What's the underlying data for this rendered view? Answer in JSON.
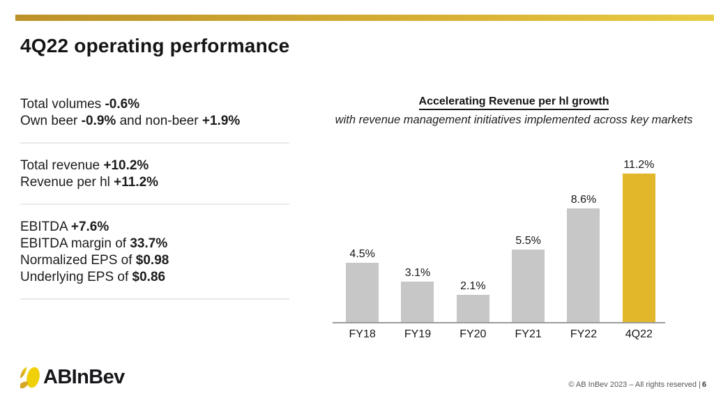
{
  "page": {
    "title": "4Q22 operating performance"
  },
  "colors": {
    "accent_gold": "#E2B82A",
    "bar_gray": "#C7C7C7",
    "top_bar_gradient_start": "#BD9129",
    "top_bar_gradient_end": "#E9CC45",
    "divider_gray": "#E9E9E9"
  },
  "metrics": {
    "groups": [
      {
        "lines": [
          {
            "segments": [
              {
                "text": "Total volumes ",
                "bold": false
              },
              {
                "text": "-0.6%",
                "bold": true
              }
            ]
          },
          {
            "segments": [
              {
                "text": "Own beer ",
                "bold": false
              },
              {
                "text": "-0.9%",
                "bold": true
              },
              {
                "text": " and non-beer ",
                "bold": false
              },
              {
                "text": "+1.9%",
                "bold": true
              }
            ]
          }
        ]
      },
      {
        "lines": [
          {
            "segments": [
              {
                "text": "Total revenue ",
                "bold": false
              },
              {
                "text": "+10.2%",
                "bold": true
              }
            ]
          },
          {
            "segments": [
              {
                "text": "Revenue per hl ",
                "bold": false
              },
              {
                "text": "+11.2%",
                "bold": true
              }
            ]
          }
        ]
      },
      {
        "lines": [
          {
            "segments": [
              {
                "text": "EBITDA ",
                "bold": false
              },
              {
                "text": "+7.6%",
                "bold": true
              }
            ]
          },
          {
            "segments": [
              {
                "text": "EBITDA margin of ",
                "bold": false
              },
              {
                "text": "33.7%",
                "bold": true
              }
            ]
          },
          {
            "segments": [
              {
                "text": "Normalized EPS of ",
                "bold": false
              },
              {
                "text": "$0.98",
                "bold": true
              }
            ]
          },
          {
            "segments": [
              {
                "text": "Underlying EPS of ",
                "bold": false
              },
              {
                "text": "$0.86",
                "bold": true
              }
            ]
          }
        ]
      }
    ]
  },
  "chart_data": {
    "type": "bar",
    "title": "Accelerating Revenue per hl growth",
    "subtitle": "with revenue management initiatives implemented across key markets",
    "categories": [
      "FY18",
      "FY19",
      "FY20",
      "FY21",
      "FY22",
      "4Q22"
    ],
    "values": [
      4.5,
      3.1,
      2.1,
      5.5,
      8.6,
      11.2
    ],
    "value_labels": [
      "4.5%",
      "3.1%",
      "2.1%",
      "5.5%",
      "8.6%",
      "11.2%"
    ],
    "unit": "%",
    "xlabel": "",
    "ylabel": "",
    "ylim": [
      0,
      12.3
    ],
    "grid": false,
    "legend": false,
    "bar_color": "#C7C7C7",
    "highlight_color": "#E2B82A",
    "highlight_index": 5
  },
  "footer": {
    "logo_text": "ABInBev",
    "copyright": "© AB InBev 2023 – All rights reserved |",
    "page_number": "6"
  }
}
